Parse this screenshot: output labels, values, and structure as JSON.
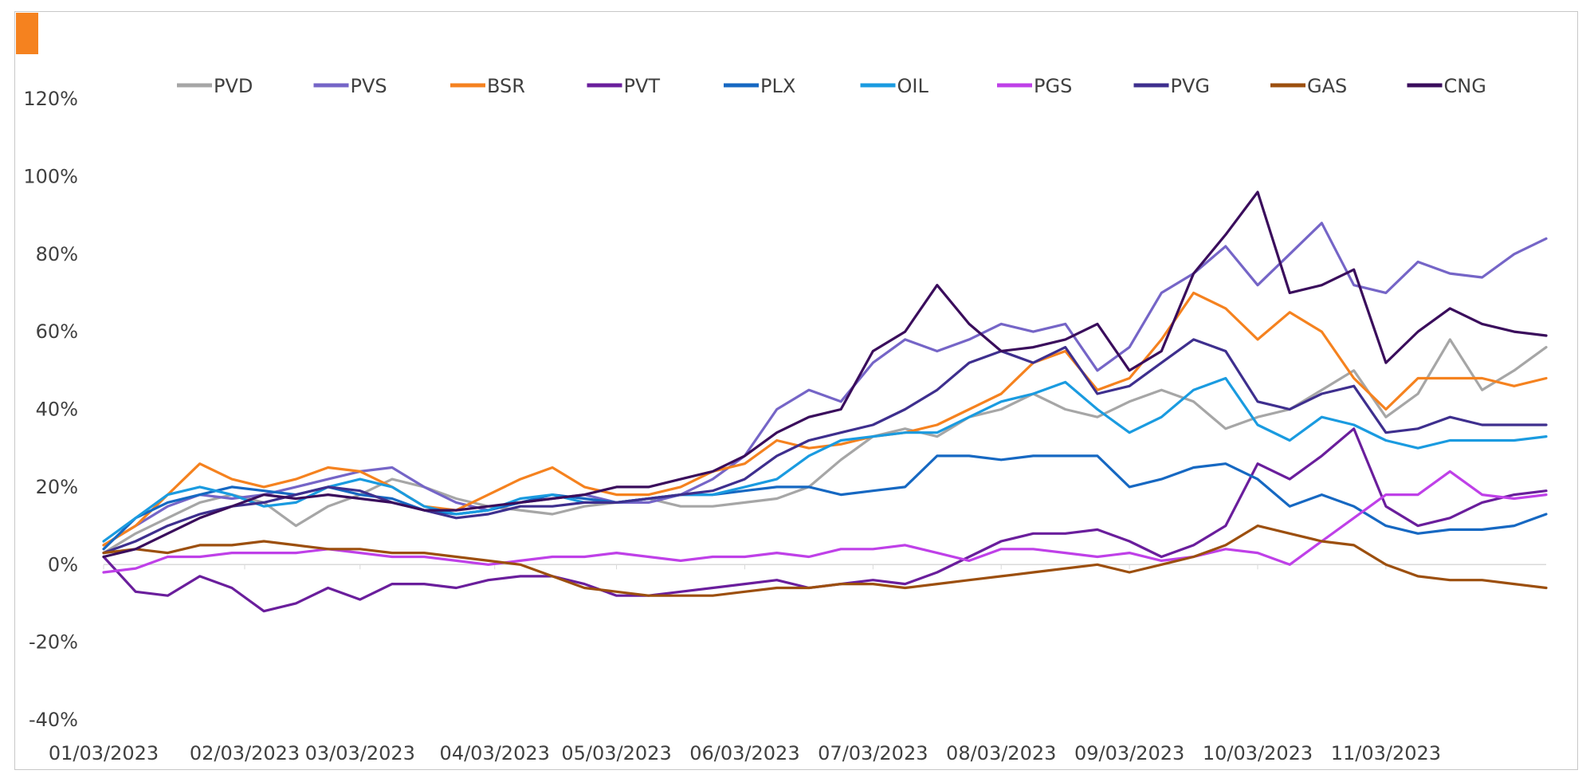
{
  "colors": {
    "accent": "#F5821F",
    "zero_line": "#d9d9d9",
    "frame": "#c8c8c8"
  },
  "chart_data": {
    "type": "line",
    "title": "",
    "xlabel": "",
    "ylabel": "",
    "ylim": [
      -40,
      120
    ],
    "yticks": [
      -40,
      -20,
      0,
      20,
      40,
      60,
      80,
      100,
      120
    ],
    "ytick_labels": [
      "-40%",
      "-20%",
      "0%",
      "20%",
      "40%",
      "60%",
      "80%",
      "100%",
      "120%"
    ],
    "x": [
      0,
      5,
      10,
      15,
      20,
      25,
      30,
      35,
      40,
      45,
      50,
      55,
      60,
      65,
      70,
      75,
      80,
      85,
      90,
      95,
      100,
      105,
      110,
      115,
      120,
      125,
      130,
      135,
      140,
      145,
      150,
      155,
      160,
      165,
      170,
      175,
      180,
      185,
      190,
      195,
      200,
      205,
      210,
      215,
      220,
      225
    ],
    "xticks": [
      0,
      22,
      40,
      61,
      80,
      100,
      120,
      140,
      160,
      180,
      200
    ],
    "xtick_labels": [
      "01/03/2023",
      "02/03/2023",
      "03/03/2023",
      "04/03/2023",
      "05/03/2023",
      "06/03/2023",
      "07/03/2023",
      "08/03/2023",
      "09/03/2023",
      "10/03/2023",
      "11/03/2023"
    ],
    "legend_position": "top",
    "series": [
      {
        "name": "PVD",
        "color": "#A6A6A6",
        "values": [
          3,
          8,
          12,
          16,
          18,
          16,
          10,
          15,
          18,
          22,
          20,
          17,
          15,
          14,
          13,
          15,
          16,
          17,
          15,
          15,
          16,
          17,
          20,
          27,
          33,
          35,
          33,
          38,
          40,
          44,
          40,
          38,
          42,
          45,
          42,
          35,
          38,
          40,
          45,
          50,
          38,
          44,
          58,
          45,
          50,
          56
        ]
      },
      {
        "name": "PVS",
        "color": "#7565C7",
        "values": [
          5,
          10,
          15,
          18,
          17,
          18,
          20,
          22,
          24,
          25,
          20,
          16,
          14,
          16,
          17,
          18,
          16,
          16,
          18,
          22,
          28,
          40,
          45,
          42,
          52,
          58,
          55,
          58,
          62,
          60,
          62,
          50,
          56,
          70,
          75,
          82,
          72,
          80,
          88,
          72,
          70,
          78,
          75,
          74,
          80,
          84
        ]
      },
      {
        "name": "BSR",
        "color": "#F5821F",
        "values": [
          5,
          10,
          18,
          26,
          22,
          20,
          22,
          25,
          24,
          20,
          15,
          14,
          18,
          22,
          25,
          20,
          18,
          18,
          20,
          24,
          26,
          32,
          30,
          31,
          33,
          34,
          36,
          40,
          44,
          52,
          55,
          45,
          48,
          58,
          70,
          66,
          58,
          65,
          60,
          48,
          40,
          48,
          48,
          48,
          46,
          48
        ]
      },
      {
        "name": "PVT",
        "color": "#6A1E9C",
        "values": [
          2,
          -7,
          -8,
          -3,
          -6,
          -12,
          -10,
          -6,
          -9,
          -5,
          -5,
          -6,
          -4,
          -3,
          -3,
          -5,
          -8,
          -8,
          -7,
          -6,
          -5,
          -4,
          -6,
          -5,
          -4,
          -5,
          -2,
          2,
          6,
          8,
          8,
          9,
          6,
          2,
          5,
          10,
          26,
          22,
          28,
          35,
          15,
          10,
          12,
          16,
          18,
          19
        ]
      },
      {
        "name": "PLX",
        "color": "#1668C2",
        "values": [
          4,
          12,
          16,
          18,
          20,
          19,
          18,
          20,
          18,
          17,
          14,
          13,
          14,
          16,
          18,
          17,
          16,
          17,
          18,
          18,
          19,
          20,
          20,
          18,
          19,
          20,
          28,
          28,
          27,
          28,
          28,
          28,
          20,
          22,
          25,
          26,
          22,
          15,
          18,
          15,
          10,
          8,
          9,
          9,
          10,
          13
        ]
      },
      {
        "name": "OIL",
        "color": "#1A9BE0",
        "values": [
          6,
          12,
          18,
          20,
          18,
          15,
          16,
          20,
          22,
          20,
          15,
          13,
          14,
          17,
          18,
          16,
          16,
          17,
          18,
          18,
          20,
          22,
          28,
          32,
          33,
          34,
          34,
          38,
          42,
          44,
          47,
          40,
          34,
          38,
          45,
          48,
          36,
          32,
          38,
          36,
          32,
          30,
          32,
          32,
          32,
          33
        ]
      },
      {
        "name": "PGS",
        "color": "#BF40E8",
        "values": [
          -2,
          -1,
          2,
          2,
          3,
          3,
          3,
          4,
          3,
          2,
          2,
          1,
          0,
          1,
          2,
          2,
          3,
          2,
          1,
          2,
          2,
          3,
          2,
          4,
          4,
          5,
          3,
          1,
          4,
          4,
          3,
          2,
          3,
          1,
          2,
          4,
          3,
          0,
          6,
          12,
          18,
          18,
          24,
          18,
          17,
          18
        ]
      },
      {
        "name": "PVG",
        "color": "#3E2F8E",
        "values": [
          3,
          6,
          10,
          13,
          15,
          16,
          18,
          20,
          19,
          16,
          14,
          12,
          13,
          15,
          15,
          16,
          16,
          17,
          18,
          19,
          22,
          28,
          32,
          34,
          36,
          40,
          45,
          52,
          55,
          52,
          56,
          44,
          46,
          52,
          58,
          55,
          42,
          40,
          44,
          46,
          34,
          35,
          38,
          36,
          36,
          36
        ]
      },
      {
        "name": "GAS",
        "color": "#9C4F0E",
        "values": [
          3,
          4,
          3,
          5,
          5,
          6,
          5,
          4,
          4,
          3,
          3,
          2,
          1,
          0,
          -3,
          -6,
          -7,
          -8,
          -8,
          -8,
          -7,
          -6,
          -6,
          -5,
          -5,
          -6,
          -5,
          -4,
          -3,
          -2,
          -1,
          0,
          -2,
          0,
          2,
          5,
          10,
          8,
          6,
          5,
          0,
          -3,
          -4,
          -4,
          -5,
          -6
        ]
      },
      {
        "name": "CNG",
        "color": "#3A0D5C",
        "values": [
          2,
          4,
          8,
          12,
          15,
          18,
          17,
          18,
          17,
          16,
          14,
          14,
          15,
          16,
          17,
          18,
          20,
          20,
          22,
          24,
          28,
          34,
          38,
          40,
          55,
          60,
          72,
          62,
          55,
          56,
          58,
          62,
          50,
          55,
          75,
          85,
          96,
          70,
          72,
          76,
          52,
          60,
          66,
          62,
          60,
          59
        ]
      }
    ]
  }
}
